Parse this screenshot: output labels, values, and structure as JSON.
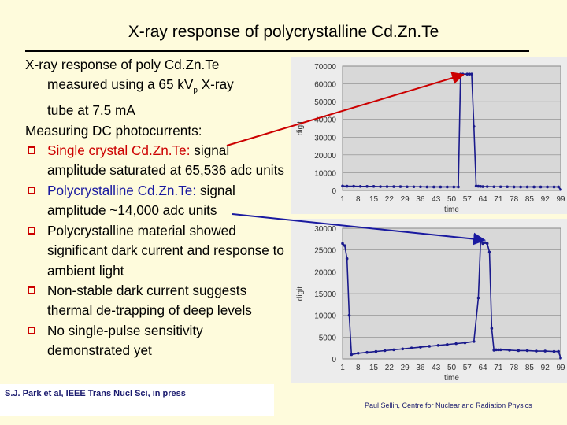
{
  "title": "X-ray response of polycrystalline Cd.Zn.Te",
  "body": {
    "intro_line1": "X-ray response of poly Cd.Zn.Te",
    "intro_line2_a": "measured using a 65 kV",
    "intro_line2_sub": "p",
    "intro_line2_b": " X-ray",
    "intro_line3": "tube at 7.5 mA",
    "measuring": "Measuring DC photocurrents:",
    "bullets": [
      {
        "lead": "Single crystal Cd.Zn.Te:",
        "rest": " signal amplitude saturated at 65,536 adc units"
      },
      {
        "lead": "Polycrystalline Cd.Zn.Te:",
        "rest": " signal amplitude ~14,000 adc units"
      },
      {
        "text": "Polycrystalline material showed significant dark current and response to ambient light"
      },
      {
        "text": "Non-stable dark current suggests thermal de-trapping of deep levels"
      },
      {
        "text": "No single-pulse sensitivity demonstrated yet"
      }
    ]
  },
  "reference": "S.J. Park et al, IEEE Trans Nucl Sci, in press",
  "footer": "Paul Sellin, Centre for Nuclear and Radiation Physics",
  "colors": {
    "bullet": "#cc0000",
    "series": "#1a1a8c",
    "arrow_red": "#cc0000",
    "arrow_blue": "#1a1aa0"
  },
  "chart_data": [
    {
      "type": "line",
      "ylabel": "digit",
      "xlabel": "time",
      "ylim": [
        0,
        70000
      ],
      "yticks": [
        0,
        10000,
        20000,
        30000,
        40000,
        50000,
        60000,
        70000
      ],
      "xticks": [
        "1",
        "8",
        "15",
        "22",
        "29",
        "36",
        "43",
        "50",
        "57",
        "64",
        "71",
        "78",
        "85",
        "92",
        "99"
      ],
      "x": [
        1,
        3,
        6,
        9,
        12,
        15,
        18,
        21,
        24,
        27,
        30,
        33,
        36,
        39,
        42,
        45,
        48,
        51,
        53,
        54,
        55,
        57,
        58,
        59,
        60,
        61,
        62,
        63,
        64,
        66,
        69,
        72,
        75,
        78,
        81,
        84,
        87,
        90,
        93,
        96,
        98,
        99
      ],
      "y": [
        2500,
        2400,
        2400,
        2300,
        2300,
        2300,
        2200,
        2200,
        2200,
        2200,
        2100,
        2100,
        2100,
        2000,
        2000,
        2000,
        2000,
        2000,
        2000,
        65500,
        65500,
        65500,
        65500,
        65500,
        36000,
        2500,
        2400,
        2300,
        2200,
        2200,
        2100,
        2100,
        2100,
        2000,
        2000,
        2000,
        2000,
        2000,
        2000,
        2000,
        2000,
        500
      ]
    },
    {
      "type": "line",
      "ylabel": "digit",
      "xlabel": "time",
      "ylim": [
        0,
        30000
      ],
      "yticks": [
        0,
        5000,
        10000,
        15000,
        20000,
        25000,
        30000
      ],
      "xticks": [
        "1",
        "8",
        "15",
        "22",
        "29",
        "36",
        "43",
        "50",
        "57",
        "64",
        "71",
        "78",
        "85",
        "92",
        "99"
      ],
      "x": [
        1,
        2,
        3,
        4,
        5,
        8,
        12,
        16,
        20,
        24,
        28,
        32,
        36,
        40,
        44,
        48,
        52,
        56,
        60,
        62,
        63,
        64,
        65,
        66,
        67,
        68,
        69,
        70,
        71,
        72,
        76,
        80,
        84,
        88,
        92,
        96,
        98,
        99
      ],
      "y": [
        26500,
        26000,
        23000,
        10000,
        1000,
        1300,
        1500,
        1700,
        1900,
        2100,
        2300,
        2500,
        2700,
        2900,
        3100,
        3300,
        3500,
        3700,
        4000,
        14000,
        27000,
        26500,
        26700,
        26500,
        24500,
        7000,
        2000,
        2100,
        2100,
        2100,
        2000,
        1900,
        1900,
        1800,
        1800,
        1700,
        1700,
        200
      ]
    }
  ]
}
